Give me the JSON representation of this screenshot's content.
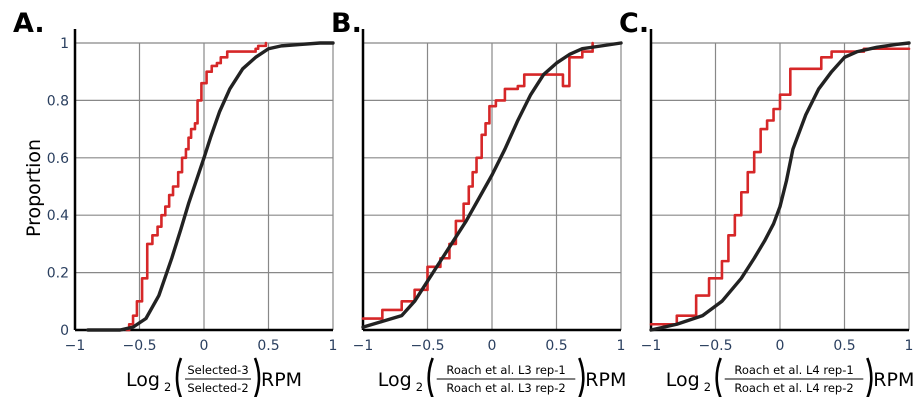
{
  "chart_data": {
    "type": "line",
    "ylabel": "Proportion",
    "colors": {
      "selected_set": "#d62728",
      "all_genes": "#222222",
      "grid": "#888888",
      "tick_text": "#2a3f5f"
    },
    "panels": [
      {
        "letter": "A.",
        "xlabel": {
          "prefix": "Log",
          "sub": "2",
          "numerator": "Selected-3",
          "denominator": "Selected-2",
          "suffix": "RPM"
        },
        "xlim": [
          -1,
          1
        ],
        "ylim": [
          0,
          1
        ],
        "xticks": [
          "−1",
          "−0.5",
          "0",
          "0.5",
          "1"
        ],
        "yticks": [
          "0",
          "0.2",
          "0.4",
          "0.6",
          "0.8",
          "1"
        ],
        "series": [
          {
            "color": "red",
            "x": [
              -0.6,
              -0.58,
              -0.55,
              -0.52,
              -0.48,
              -0.44,
              -0.4,
              -0.36,
              -0.33,
              -0.3,
              -0.27,
              -0.24,
              -0.2,
              -0.17,
              -0.14,
              -0.12,
              -0.1,
              -0.07,
              -0.05,
              -0.02,
              0.02,
              0.06,
              0.1,
              0.13,
              0.18,
              0.2,
              0.23,
              0.3,
              0.36,
              0.4,
              0.42,
              0.48
            ],
            "y": [
              0,
              0.02,
              0.05,
              0.1,
              0.18,
              0.3,
              0.33,
              0.36,
              0.4,
              0.43,
              0.47,
              0.5,
              0.55,
              0.6,
              0.63,
              0.67,
              0.7,
              0.72,
              0.8,
              0.86,
              0.9,
              0.92,
              0.93,
              0.95,
              0.97,
              0.97,
              0.97,
              0.97,
              0.97,
              0.98,
              0.99,
              1.0
            ]
          },
          {
            "color": "black",
            "x": [
              -0.9,
              -0.65,
              -0.55,
              -0.45,
              -0.35,
              -0.25,
              -0.18,
              -0.12,
              -0.06,
              0.0,
              0.05,
              0.12,
              0.2,
              0.3,
              0.4,
              0.5,
              0.6,
              0.75,
              0.9,
              1.0
            ],
            "y": [
              0,
              0.0,
              0.01,
              0.04,
              0.12,
              0.25,
              0.35,
              0.44,
              0.52,
              0.6,
              0.67,
              0.76,
              0.84,
              0.91,
              0.95,
              0.98,
              0.99,
              0.995,
              1.0,
              1.0
            ]
          }
        ]
      },
      {
        "letter": "B.",
        "xlabel": {
          "prefix": "Log",
          "sub": "2",
          "numerator": "Roach et al. L3 rep-1",
          "denominator": "Roach et al. L3 rep-2",
          "suffix": "RPM"
        },
        "xlim": [
          -1,
          1
        ],
        "ylim": [
          0,
          1
        ],
        "xticks": [
          "−1",
          "−0.5",
          "0",
          "0.5",
          "1"
        ],
        "yticks": [
          "0",
          "0.2",
          "0.4",
          "0.6",
          "0.8",
          "1"
        ],
        "series": [
          {
            "color": "red",
            "x": [
              -1.0,
              -0.85,
              -0.7,
              -0.6,
              -0.5,
              -0.4,
              -0.33,
              -0.28,
              -0.22,
              -0.18,
              -0.15,
              -0.12,
              -0.08,
              -0.05,
              -0.02,
              0.03,
              0.1,
              0.2,
              0.25,
              0.3,
              0.45,
              0.55,
              0.6,
              0.7,
              0.78
            ],
            "y": [
              0.04,
              0.07,
              0.1,
              0.14,
              0.22,
              0.25,
              0.3,
              0.38,
              0.44,
              0.5,
              0.55,
              0.6,
              0.68,
              0.72,
              0.78,
              0.8,
              0.84,
              0.85,
              0.89,
              0.89,
              0.89,
              0.85,
              0.95,
              0.97,
              1.0
            ]
          },
          {
            "color": "black",
            "x": [
              -1.0,
              -0.85,
              -0.7,
              -0.6,
              -0.5,
              -0.4,
              -0.3,
              -0.2,
              -0.1,
              0.0,
              0.1,
              0.2,
              0.3,
              0.4,
              0.5,
              0.6,
              0.7,
              0.85,
              1.0
            ],
            "y": [
              0.01,
              0.03,
              0.05,
              0.1,
              0.17,
              0.24,
              0.31,
              0.38,
              0.46,
              0.54,
              0.63,
              0.73,
              0.82,
              0.89,
              0.93,
              0.96,
              0.98,
              0.99,
              1.0
            ]
          }
        ]
      },
      {
        "letter": "C.",
        "xlabel": {
          "prefix": "Log",
          "sub": "2",
          "numerator": "Roach et al. L4 rep-1",
          "denominator": "Roach et al. L4 rep-2",
          "suffix": "RPM"
        },
        "xlim": [
          -1,
          1
        ],
        "ylim": [
          0,
          1
        ],
        "xticks": [
          "−1",
          "−0.5",
          "0",
          "0.5",
          "1"
        ],
        "yticks": [
          "0",
          "0.2",
          "0.4",
          "0.6",
          "0.8",
          "1"
        ],
        "series": [
          {
            "color": "red",
            "x": [
              -1.0,
              -0.8,
              -0.65,
              -0.55,
              -0.45,
              -0.4,
              -0.35,
              -0.3,
              -0.25,
              -0.2,
              -0.15,
              -0.1,
              -0.05,
              0.0,
              0.08,
              0.2,
              0.32,
              0.4,
              0.48,
              0.55,
              0.65,
              1.0
            ],
            "y": [
              0.02,
              0.05,
              0.12,
              0.18,
              0.24,
              0.33,
              0.4,
              0.48,
              0.55,
              0.62,
              0.7,
              0.73,
              0.77,
              0.82,
              0.91,
              0.91,
              0.95,
              0.97,
              0.97,
              0.97,
              0.98,
              0.98
            ]
          },
          {
            "color": "black",
            "x": [
              -1.0,
              -0.8,
              -0.6,
              -0.45,
              -0.3,
              -0.2,
              -0.12,
              -0.05,
              0.0,
              0.05,
              0.1,
              0.2,
              0.3,
              0.4,
              0.5,
              0.6,
              0.75,
              0.9,
              1.0
            ],
            "y": [
              0.0,
              0.02,
              0.05,
              0.1,
              0.18,
              0.25,
              0.31,
              0.37,
              0.43,
              0.52,
              0.63,
              0.75,
              0.84,
              0.9,
              0.95,
              0.97,
              0.985,
              0.995,
              1.0
            ]
          }
        ]
      }
    ]
  }
}
